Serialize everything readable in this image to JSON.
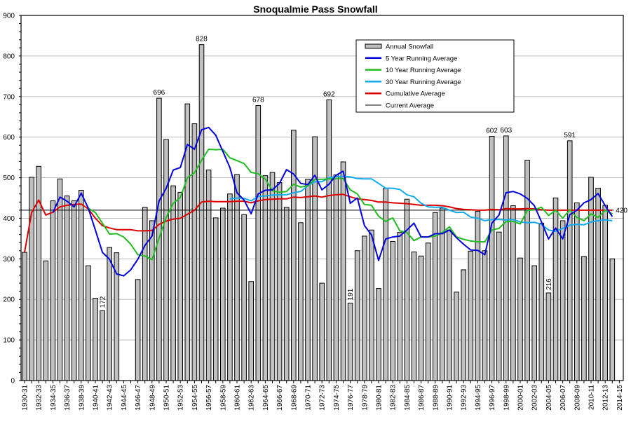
{
  "chart_data": {
    "type": "bar",
    "title": "Snoqualmie Pass Snowfall",
    "xlabel": "",
    "ylabel": "",
    "ylim": [
      0,
      900
    ],
    "yticks": [
      0,
      100,
      200,
      300,
      400,
      500,
      600,
      700,
      800,
      900
    ],
    "grid": true,
    "legend_position": "top-right",
    "categories": [
      "1930-31",
      "1931-32",
      "1932-33",
      "1933-34",
      "1934-35",
      "1935-36",
      "1936-37",
      "1937-38",
      "1938-39",
      "1939-40",
      "1940-41",
      "1941-42",
      "1942-43",
      "1943-44",
      "1944-45",
      "1945-46",
      "1946-47",
      "1947-48",
      "1948-49",
      "1949-50",
      "1950-51",
      "1951-52",
      "1952-53",
      "1953-54",
      "1954-55",
      "1955-56",
      "1956-57",
      "1957-58",
      "1958-59",
      "1959-60",
      "1960-61",
      "1961-62",
      "1962-63",
      "1963-64",
      "1964-65",
      "1965-66",
      "1966-67",
      "1967-68",
      "1968-69",
      "1969-70",
      "1970-71",
      "1971-72",
      "1972-73",
      "1973-74",
      "1974-75",
      "1975-76",
      "1976-77",
      "1977-78",
      "1978-79",
      "1979-80",
      "1980-81",
      "1981-82",
      "1982-83",
      "1983-84",
      "1984-85",
      "1985-86",
      "1986-87",
      "1987-88",
      "1988-89",
      "1989-90",
      "1990-91",
      "1991-92",
      "1992-93",
      "1993-94",
      "1994-95",
      "1995-96",
      "1996-97",
      "1997-98",
      "1998-99",
      "1999-00",
      "2000-01",
      "2001-02",
      "2002-03",
      "2003-04",
      "2004-05",
      "2005-06",
      "2006-07",
      "2007-08",
      "2008-09",
      "2009-10",
      "2010-11",
      "2011-12",
      "2012-13",
      "2013-14",
      "2014-15"
    ],
    "series": [
      {
        "name": "Annual Snowfall",
        "kind": "bar",
        "color": "#c0c0c0",
        "values": [
          316,
          501,
          528,
          295,
          443,
          497,
          455,
          443,
          469,
          283,
          203,
          172,
          328,
          315,
          null,
          null,
          249,
          427,
          394,
          696,
          594,
          480,
          464,
          682,
          633,
          828,
          519,
          401,
          425,
          460,
          508,
          409,
          244,
          678,
          505,
          513,
          488,
          427,
          617,
          389,
          496,
          601,
          240,
          692,
          507,
          539,
          191,
          320,
          356,
          371,
          227,
          474,
          343,
          365,
          447,
          317,
          307,
          339,
          414,
          425,
          371,
          218,
          273,
          319,
          417,
          320,
          602,
          366,
          603,
          431,
          302,
          543,
          283,
          388,
          216,
          450,
          394,
          591,
          438,
          306,
          501,
          474,
          432,
          300,
          null
        ]
      },
      {
        "name": "5 Year Running Average",
        "kind": "line",
        "color": "#0000dd",
        "values": [
          null,
          null,
          null,
          null,
          414,
          452,
          442,
          428,
          462,
          425,
          371,
          316,
          299,
          263,
          258,
          273,
          299,
          333,
          356,
          443,
          474,
          519,
          525,
          582,
          570,
          618,
          624,
          605,
          565,
          525,
          463,
          445,
          411,
          460,
          469,
          470,
          486,
          520,
          509,
          486,
          483,
          506,
          470,
          484,
          506,
          516,
          437,
          450,
          382,
          359,
          296,
          349,
          354,
          356,
          371,
          388,
          354,
          354,
          362,
          362,
          371,
          352,
          336,
          322,
          321,
          310,
          388,
          408,
          463,
          466,
          460,
          449,
          431,
          391,
          349,
          376,
          349,
          409,
          420,
          438,
          446,
          461,
          431,
          404,
          null
        ]
      },
      {
        "name": "10 Year Running Average",
        "kind": "line",
        "color": "#22bb22",
        "values": [
          null,
          null,
          null,
          null,
          null,
          null,
          null,
          null,
          null,
          425,
          414,
          388,
          361,
          362,
          354,
          336,
          310,
          307,
          298,
          351,
          402,
          437,
          451,
          500,
          512,
          543,
          570,
          569,
          570,
          549,
          542,
          535,
          513,
          510,
          497,
          468,
          464,
          466,
          484,
          477,
          480,
          496,
          496,
          497,
          498,
          498,
          470,
          460,
          434,
          432,
          405,
          392,
          401,
          369,
          365,
          345,
          354,
          354,
          356,
          365,
          379,
          354,
          348,
          344,
          342,
          342,
          371,
          375,
          392,
          392,
          386,
          419,
          421,
          427,
          407,
          420,
          400,
          421,
          402,
          394,
          411,
          402,
          420,
          411,
          null
        ]
      },
      {
        "name": "30 Year Running Average",
        "kind": "line",
        "color": "#11aaee",
        "values": [
          null,
          null,
          null,
          null,
          null,
          null,
          null,
          null,
          null,
          null,
          null,
          null,
          null,
          null,
          null,
          null,
          null,
          null,
          null,
          null,
          null,
          null,
          null,
          null,
          null,
          null,
          null,
          null,
          null,
          448,
          450,
          449,
          443,
          454,
          455,
          457,
          458,
          458,
          463,
          466,
          480,
          490,
          490,
          500,
          503,
          503,
          502,
          498,
          497,
          497,
          486,
          474,
          474,
          471,
          458,
          453,
          437,
          428,
          427,
          427,
          420,
          414,
          415,
          403,
          400,
          394,
          397,
          397,
          396,
          397,
          391,
          389,
          390,
          385,
          371,
          368,
          375,
          383,
          385,
          384,
          391,
          394,
          396,
          394,
          null
        ]
      },
      {
        "name": "Cumulative Average",
        "kind": "line",
        "color": "#dd0000",
        "values": [
          316,
          414,
          445,
          408,
          415,
          428,
          432,
          434,
          435,
          423,
          400,
          382,
          376,
          372,
          372,
          372,
          369,
          369,
          370,
          385,
          393,
          398,
          400,
          410,
          420,
          440,
          442,
          441,
          441,
          441,
          442,
          442,
          438,
          443,
          446,
          447,
          448,
          448,
          452,
          451,
          453,
          455,
          452,
          456,
          458,
          459,
          453,
          448,
          446,
          444,
          440,
          440,
          438,
          437,
          436,
          434,
          432,
          432,
          432,
          431,
          428,
          424,
          422,
          421,
          420,
          420,
          422,
          421,
          424,
          423,
          423,
          424,
          423,
          421,
          420,
          420,
          420,
          420,
          420,
          420,
          420,
          420,
          420,
          420,
          null
        ]
      },
      {
        "name": "Current Average",
        "kind": "hline",
        "color": "#000000",
        "value": 420
      }
    ],
    "annotations": [
      {
        "category": "1941-42",
        "text": "172",
        "rotated": true
      },
      {
        "category": "1949-50",
        "text": "696",
        "rotated": false
      },
      {
        "category": "1955-56",
        "text": "828",
        "rotated": false
      },
      {
        "category": "1963-64",
        "text": "678",
        "rotated": false
      },
      {
        "category": "1973-74",
        "text": "692",
        "rotated": false
      },
      {
        "category": "1976-77",
        "text": "191",
        "rotated": true
      },
      {
        "category": "1996-97",
        "text": "602",
        "rotated": false
      },
      {
        "category": "1998-99",
        "text": "603",
        "rotated": false
      },
      {
        "category": "2004-05",
        "text": "216",
        "rotated": true
      },
      {
        "category": "2007-08",
        "text": "591",
        "rotated": false
      }
    ],
    "current_average_label": "420"
  }
}
